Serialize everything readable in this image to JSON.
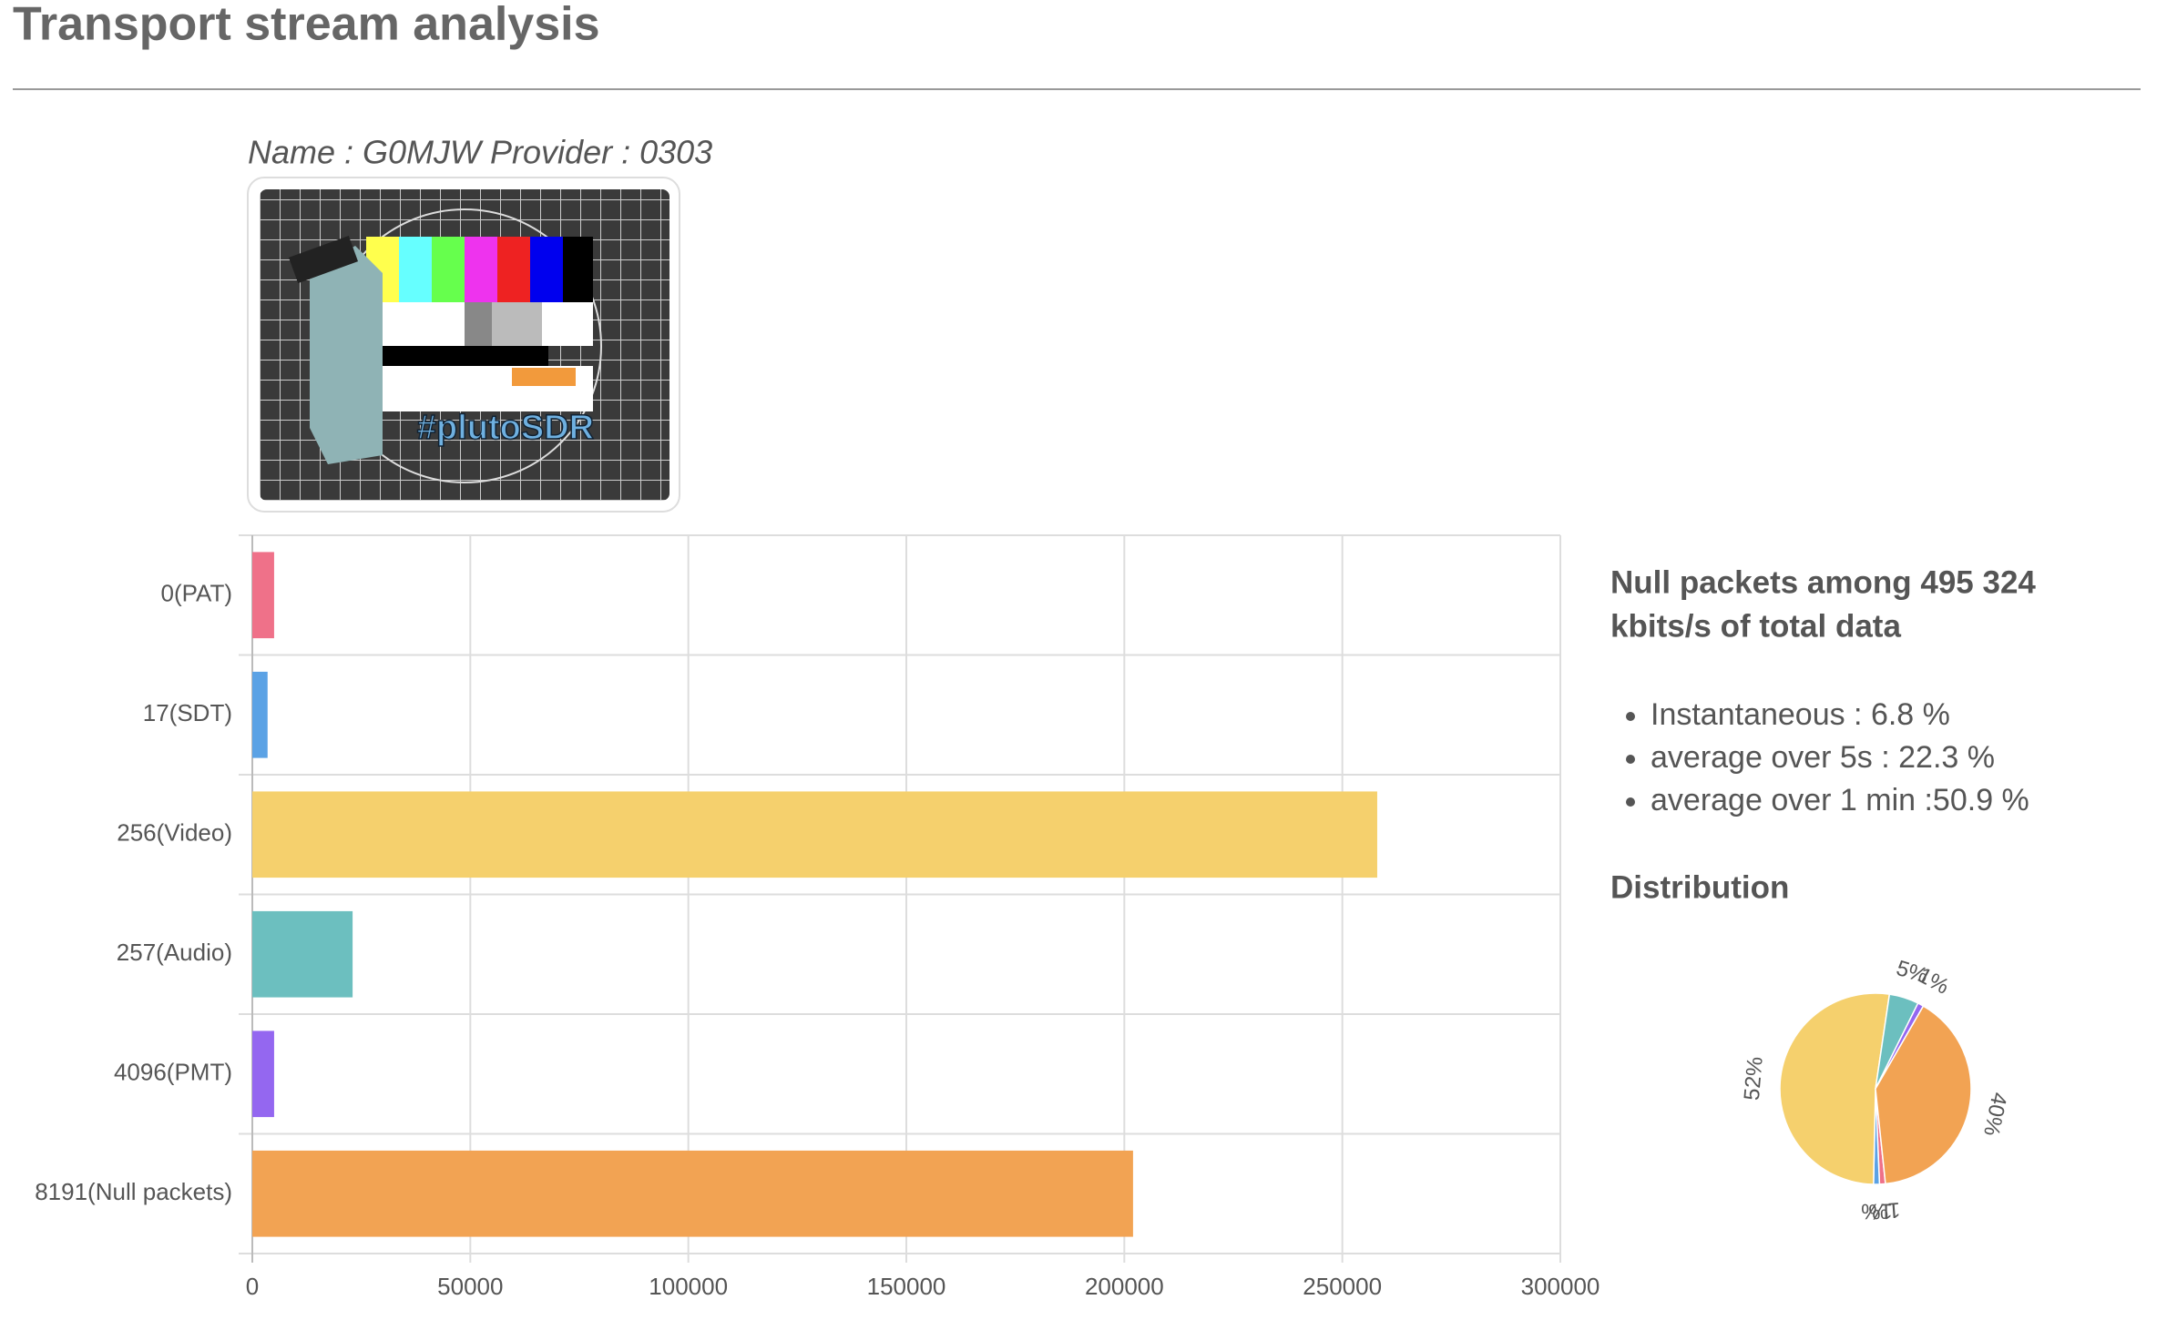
{
  "header": {
    "title": "Transport stream analysis"
  },
  "channel": {
    "name_line": "Name : G0MJW Provider : 0303",
    "image_caption": "#plutoSDR"
  },
  "stats": {
    "heading": [
      "Null packets among 495 324",
      "kbits/s of total data"
    ],
    "items": [
      "Instantaneous : 6.8 %",
      "average over 5s : 22.3 %",
      "average over 1 min :50.9 %"
    ],
    "distribution_heading": "Distribution"
  },
  "chart_data": [
    {
      "type": "hbar",
      "categories": [
        "0(PAT)",
        "17(SDT)",
        "256(Video)",
        "257(Audio)",
        "4096(PMT)",
        "8191(Null packets)"
      ],
      "values": [
        5000,
        3500,
        258000,
        23000,
        5000,
        202000
      ],
      "colors": [
        "#ef7189",
        "#5ba2e5",
        "#f5d06d",
        "#6cbfbf",
        "#9467f0",
        "#f2a353"
      ],
      "xlim": [
        0,
        300000
      ],
      "xticks": [
        0,
        50000,
        100000,
        150000,
        200000,
        250000,
        300000
      ],
      "grid": true
    },
    {
      "type": "pie",
      "categories": [
        "0(PAT)",
        "17(SDT)",
        "256(Video)",
        "257(Audio)",
        "4096(PMT)",
        "8191(Null packets)"
      ],
      "values": [
        1,
        1,
        52,
        5,
        1,
        40
      ],
      "value_labels": [
        "1%",
        "1%",
        "52%",
        "5%",
        "1%",
        "40%"
      ],
      "colors": [
        "#ef7189",
        "#5ba2e5",
        "#f5d06d",
        "#6cbfbf",
        "#9467f0",
        "#f2a353"
      ]
    }
  ]
}
